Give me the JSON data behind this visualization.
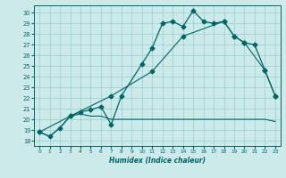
{
  "xlabel": "Humidex (Indice chaleur)",
  "bg_color": "#cceaea",
  "line_color": "#006666",
  "grid_color": "#99cccc",
  "xlim": [
    -0.5,
    23.5
  ],
  "ylim": [
    17.5,
    30.7
  ],
  "xticks": [
    0,
    1,
    2,
    3,
    4,
    5,
    6,
    7,
    8,
    9,
    10,
    11,
    12,
    13,
    14,
    15,
    16,
    17,
    18,
    19,
    20,
    21,
    22,
    23
  ],
  "yticks": [
    18,
    19,
    20,
    21,
    22,
    23,
    24,
    25,
    26,
    27,
    28,
    29,
    30
  ],
  "line1_x": [
    0,
    1,
    2,
    3,
    4,
    5,
    6,
    7,
    8,
    10,
    11,
    12,
    13,
    14,
    15,
    16,
    17,
    18,
    19,
    20,
    21,
    22,
    23
  ],
  "line1_y": [
    18.8,
    18.4,
    19.2,
    20.3,
    20.7,
    20.9,
    21.2,
    19.5,
    22.2,
    25.2,
    26.7,
    29.0,
    29.2,
    28.7,
    30.2,
    29.2,
    29.0,
    29.2,
    27.8,
    27.2,
    27.0,
    24.6,
    22.2
  ],
  "line2_x": [
    0,
    1,
    2,
    3,
    4,
    5,
    6,
    7,
    8,
    9,
    10,
    11,
    12,
    13,
    14,
    15,
    16,
    17,
    18,
    19,
    20,
    21,
    22,
    23
  ],
  "line2_y": [
    18.8,
    18.4,
    19.2,
    20.3,
    20.5,
    20.3,
    20.3,
    20.0,
    20.0,
    20.0,
    20.0,
    20.0,
    20.0,
    20.0,
    20.0,
    20.0,
    20.0,
    20.0,
    20.0,
    20.0,
    20.0,
    20.0,
    20.0,
    19.8
  ],
  "line3_x": [
    0,
    3,
    7,
    11,
    14,
    18,
    19,
    20,
    22,
    23
  ],
  "line3_y": [
    18.8,
    20.3,
    22.2,
    24.5,
    27.8,
    29.2,
    27.8,
    27.2,
    24.6,
    22.2
  ],
  "markersize": 2.5
}
